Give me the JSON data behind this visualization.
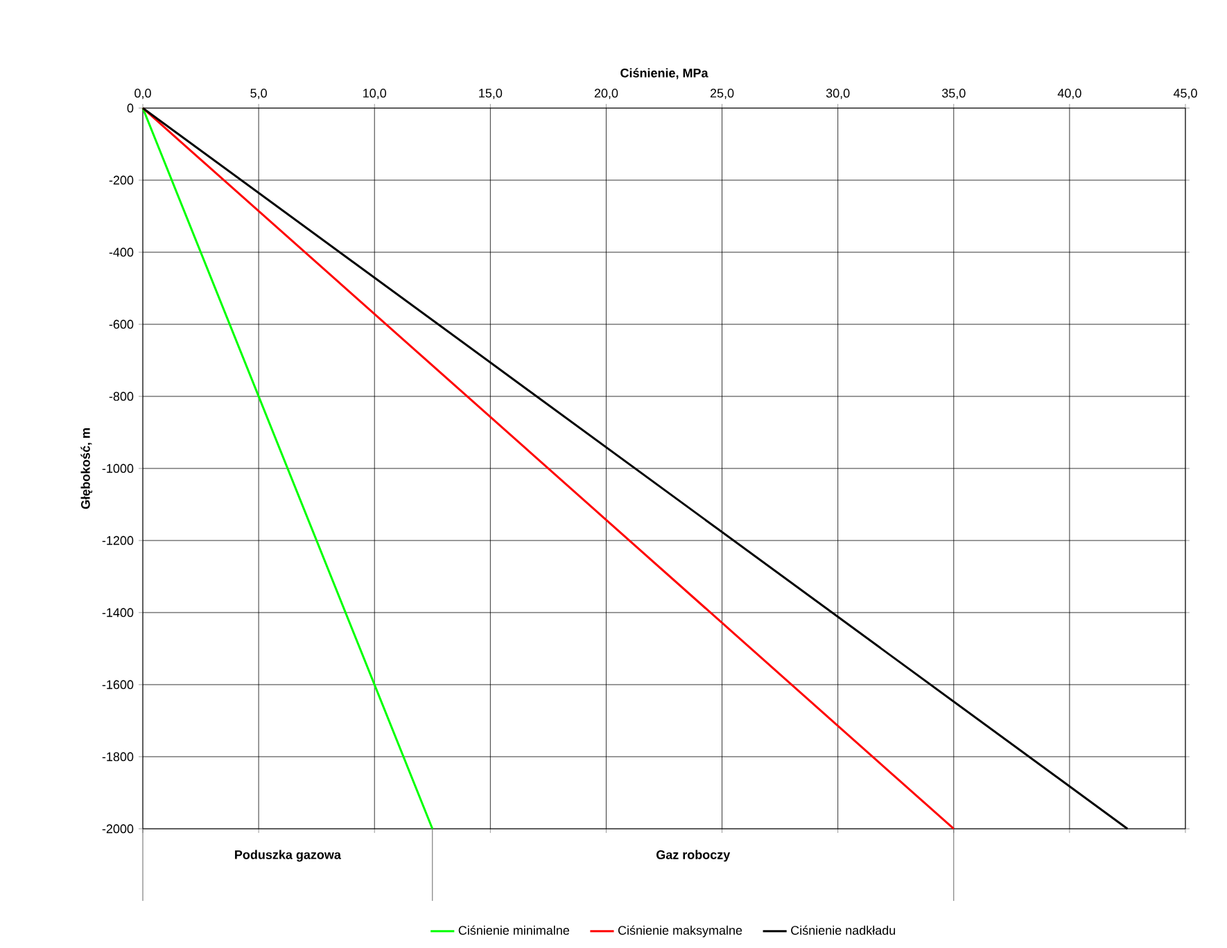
{
  "chart_data": {
    "type": "line",
    "xlabel": "Ciśnienie, MPa",
    "ylabel": "Głębokość, m",
    "xlim": [
      0,
      45
    ],
    "ylim": [
      -2000,
      0
    ],
    "xticks": [
      {
        "value": 0,
        "label": "0,0"
      },
      {
        "value": 5,
        "label": "5,0"
      },
      {
        "value": 10,
        "label": "10,0"
      },
      {
        "value": 15,
        "label": "15,0"
      },
      {
        "value": 20,
        "label": "20,0"
      },
      {
        "value": 25,
        "label": "25,0"
      },
      {
        "value": 30,
        "label": "30,0"
      },
      {
        "value": 35,
        "label": "35,0"
      },
      {
        "value": 40,
        "label": "40,0"
      },
      {
        "value": 45,
        "label": "45,0"
      }
    ],
    "yticks": [
      0,
      -200,
      -400,
      -600,
      -800,
      -1000,
      -1200,
      -1400,
      -1600,
      -1800,
      -2000
    ],
    "series": [
      {
        "name": "Ciśnienie minimalne",
        "color": "#00ff00",
        "x": [
          0,
          12.5
        ],
        "values": [
          0,
          -2000
        ]
      },
      {
        "name": "Ciśnienie maksymalne",
        "color": "#ff0000",
        "x": [
          0,
          35
        ],
        "values": [
          0,
          -2000
        ]
      },
      {
        "name": "Ciśnienie nadkładu",
        "color": "#000000",
        "x": [
          0,
          42.5
        ],
        "values": [
          0,
          -2000
        ]
      }
    ],
    "annotations": [
      "Poduszka gazowa",
      "Gaz roboczy"
    ],
    "grid": true,
    "legend": "bottom",
    "marker": "none",
    "line_style": "solid"
  }
}
